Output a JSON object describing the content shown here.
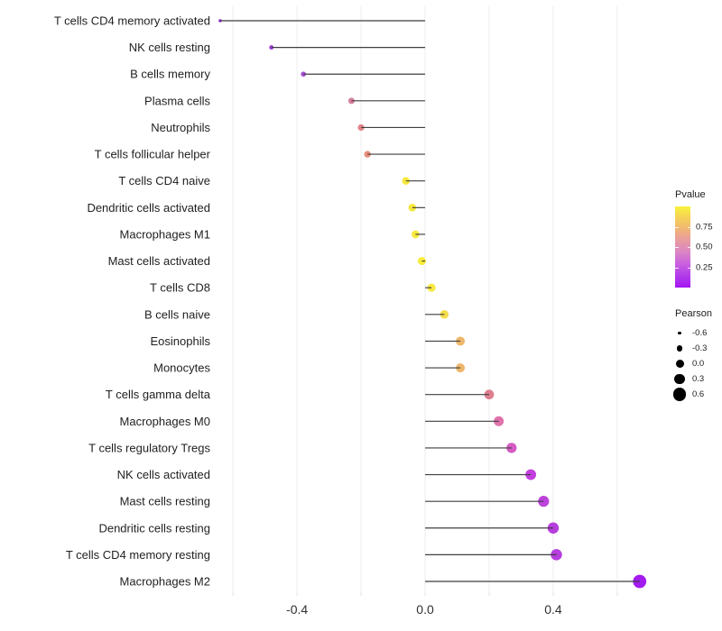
{
  "chart_data": {
    "type": "lollipop",
    "title": "",
    "xlabel": "",
    "ylabel": "",
    "x_axis": {
      "range": [
        -0.685,
        0.713
      ],
      "ticks": [
        -0.4,
        0.0,
        0.4
      ],
      "tick_labels": [
        "-0.4",
        "0.0",
        "0.4"
      ],
      "gridlines": [
        -0.6,
        -0.4,
        -0.2,
        0.0,
        0.2,
        0.4,
        0.6
      ],
      "grid_on": true
    },
    "points": [
      {
        "label": "T cells CD4 memory activated",
        "pearson": -0.64,
        "color": "#8F2BD6"
      },
      {
        "label": "NK cells resting",
        "pearson": -0.48,
        "color": "#9C3BD8"
      },
      {
        "label": "B cells memory",
        "pearson": -0.38,
        "color": "#A850D4"
      },
      {
        "label": "Plasma cells",
        "pearson": -0.23,
        "color": "#D97E9B"
      },
      {
        "label": "Neutrophils",
        "pearson": -0.2,
        "color": "#E28389"
      },
      {
        "label": "T cells follicular helper",
        "pearson": -0.18,
        "color": "#E78F7C"
      },
      {
        "label": "T cells CD4 naive",
        "pearson": -0.06,
        "color": "#F6E83E"
      },
      {
        "label": "Dendritic cells activated",
        "pearson": -0.04,
        "color": "#F6E83E"
      },
      {
        "label": "Macrophages M1",
        "pearson": -0.03,
        "color": "#F6E93C"
      },
      {
        "label": "Mast cells activated",
        "pearson": -0.01,
        "color": "#F8ED39"
      },
      {
        "label": "T cells CD8",
        "pearson": 0.02,
        "color": "#F8E840"
      },
      {
        "label": "B cells naive",
        "pearson": 0.06,
        "color": "#F3DB4B"
      },
      {
        "label": "Eosinophils",
        "pearson": 0.11,
        "color": "#EDB76C"
      },
      {
        "label": "Monocytes",
        "pearson": 0.11,
        "color": "#EDB66B"
      },
      {
        "label": "T cells gamma delta",
        "pearson": 0.2,
        "color": "#DD7F8F"
      },
      {
        "label": "Macrophages M0",
        "pearson": 0.23,
        "color": "#DF72AB"
      },
      {
        "label": "T cells regulatory  Tregs",
        "pearson": 0.27,
        "color": "#D55CC4"
      },
      {
        "label": "NK cells activated",
        "pearson": 0.33,
        "color": "#C43EE0"
      },
      {
        "label": "Mast cells resting",
        "pearson": 0.37,
        "color": "#BC43DC"
      },
      {
        "label": "Dendritic cells resting",
        "pearson": 0.4,
        "color": "#B63EDD"
      },
      {
        "label": "T cells CD4 memory resting",
        "pearson": 0.41,
        "color": "#B63EDD"
      },
      {
        "label": "Macrophages M2",
        "pearson": 0.67,
        "color": "#A31BEF"
      }
    ],
    "legend": {
      "pvalue": {
        "title": "Pvalue",
        "ticks": [
          {
            "label": "0.75",
            "value": 0.75
          },
          {
            "label": "0.50",
            "value": 0.5
          },
          {
            "label": "0.25",
            "value": 0.25
          }
        ],
        "bar_range": [
          0,
          1
        ],
        "gradient_top_to_bottom": [
          "#F8F33D",
          "#F5D058",
          "#F0B377",
          "#E79AA4",
          "#DA84C6",
          "#C95EE0",
          "#B13BEA",
          "#A416F2"
        ]
      },
      "pearson": {
        "title": "Pearson",
        "items": [
          {
            "label": "-0.6",
            "value": -0.6
          },
          {
            "label": "-0.3",
            "value": -0.3
          },
          {
            "label": "0.0",
            "value": 0.0
          },
          {
            "label": "0.3",
            "value": 0.3
          },
          {
            "label": "0.6",
            "value": 0.6
          }
        ]
      }
    },
    "colors": {
      "stem": "#3f3f3f",
      "gridline": "#ededed",
      "axis_tick_minor": "#e2e2e2",
      "axis_text": "#303030",
      "category_text": "#1f1f1f",
      "legend_dot": "#000000"
    }
  }
}
